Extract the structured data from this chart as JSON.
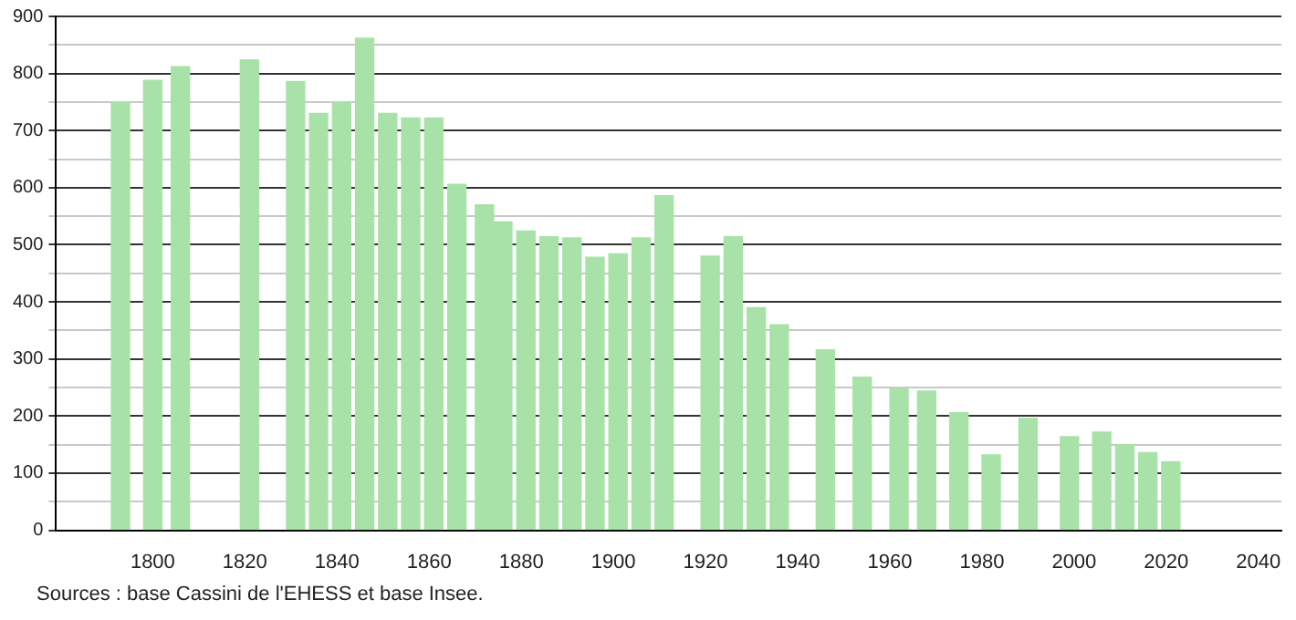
{
  "chart_data": {
    "type": "bar",
    "x": [
      1793,
      1800,
      1806,
      1821,
      1831,
      1836,
      1841,
      1846,
      1851,
      1856,
      1861,
      1866,
      1872,
      1876,
      1881,
      1886,
      1891,
      1896,
      1901,
      1906,
      1911,
      1921,
      1926,
      1931,
      1936,
      1946,
      1954,
      1962,
      1968,
      1975,
      1982,
      1990,
      1999,
      2006,
      2011,
      2016,
      2021
    ],
    "values": [
      750,
      788,
      812,
      824,
      786,
      730,
      750,
      862,
      730,
      722,
      722,
      606,
      570,
      540,
      524,
      514,
      512,
      478,
      484,
      512,
      586,
      480,
      514,
      390,
      360,
      316,
      268,
      248,
      244,
      206,
      132,
      196,
      164,
      172,
      150,
      136,
      120
    ],
    "color": "#a8e2a8",
    "xlim": [
      1779,
      2045
    ],
    "xticks": [
      1800,
      1820,
      1840,
      1860,
      1880,
      1900,
      1920,
      1940,
      1960,
      1980,
      2000,
      2020,
      2040
    ],
    "ylim": [
      0,
      900
    ],
    "yticks": [
      0,
      {
        "value": 50,
        "label": null
      },
      100,
      {
        "value": 150,
        "label": null
      },
      200,
      {
        "value": 250,
        "label": null
      },
      300,
      {
        "value": 350,
        "label": null
      },
      400,
      {
        "value": 450,
        "label": null
      },
      500,
      {
        "value": 550,
        "label": null
      },
      600,
      {
        "value": 650,
        "label": null
      },
      700,
      {
        "value": 750,
        "label": null
      },
      800,
      {
        "value": 850,
        "label": null
      },
      900
    ],
    "grid": "y",
    "annotations": [
      "Sources : base Cassini de l'EHESS et base Insee."
    ]
  }
}
